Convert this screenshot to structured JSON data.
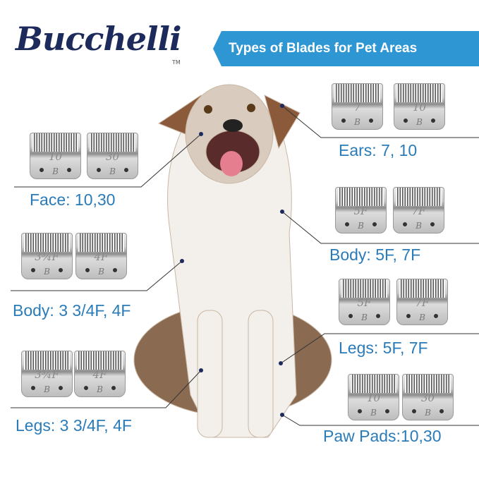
{
  "brand": {
    "logo": "Bucchelli",
    "tm": "TM"
  },
  "banner": {
    "title": "Types of Blades for Pet Areas"
  },
  "colors": {
    "banner": "#2e96d3",
    "label": "#2a7bb8",
    "logo": "#1d2a5c"
  },
  "groups": [
    {
      "label": "Ears: 7, 10",
      "blades": [
        "7",
        "10"
      ]
    },
    {
      "label": "Face: 10,30",
      "blades": [
        "10",
        "30"
      ]
    },
    {
      "label": "Body: 5F, 7F",
      "blades": [
        "5F",
        "7F"
      ]
    },
    {
      "label": "Body: 3 3/4F, 4F",
      "blades": [
        "3¾F",
        "4F"
      ]
    },
    {
      "label": "Legs: 5F, 7F",
      "blades": [
        "5F",
        "7F"
      ]
    },
    {
      "label": "Legs: 3 3/4F, 4F",
      "blades": [
        "3¾F",
        "4F"
      ]
    },
    {
      "label": "Paw Pads:10,30",
      "blades": [
        "10",
        "30"
      ]
    }
  ],
  "blade_mark": "B"
}
